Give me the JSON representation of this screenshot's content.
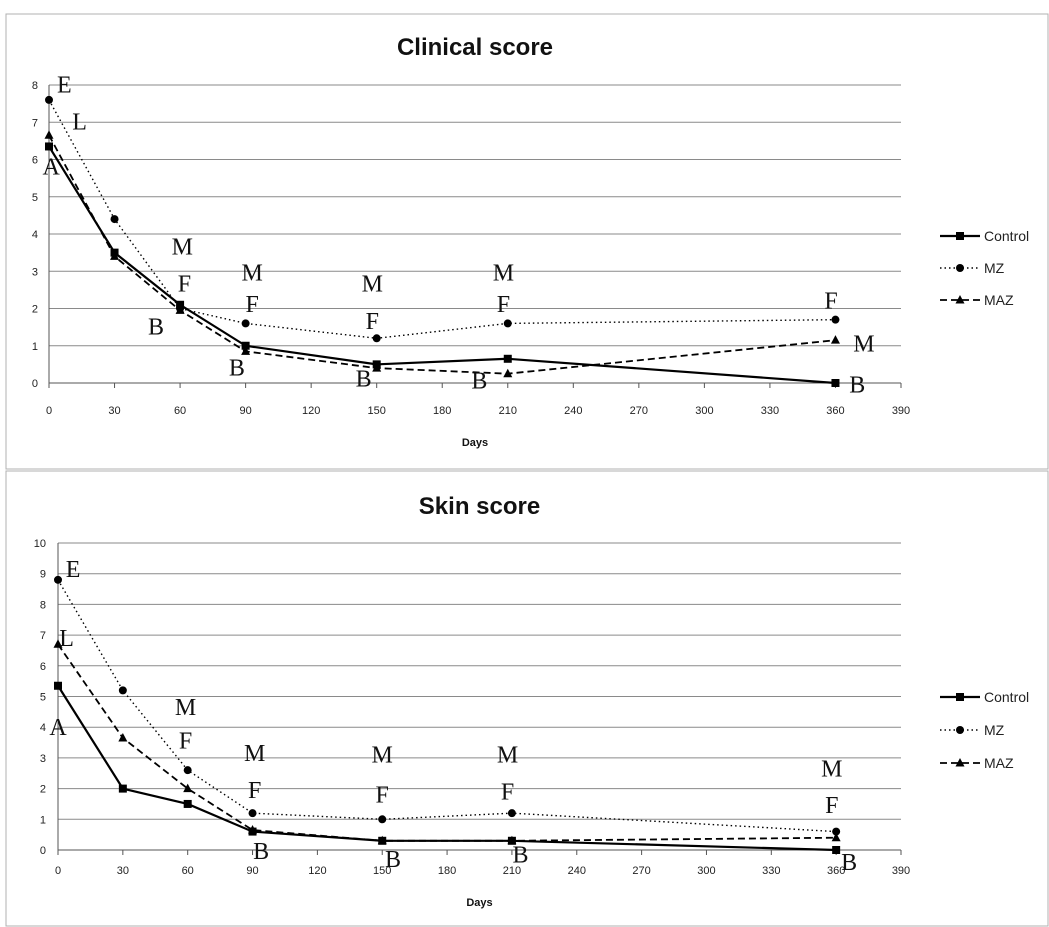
{
  "chart_data": [
    {
      "type": "line",
      "title": "Clinical score",
      "xlabel": "Days",
      "ylabel": "",
      "xlim": [
        0,
        390
      ],
      "ylim": [
        0,
        8
      ],
      "x_ticks": [
        0,
        30,
        60,
        90,
        120,
        150,
        180,
        210,
        240,
        270,
        300,
        330,
        360,
        390
      ],
      "y_ticks": [
        0,
        1,
        2,
        3,
        4,
        5,
        6,
        7,
        8
      ],
      "grid": "horizontal",
      "legend": "right",
      "series": [
        {
          "name": "Control",
          "style": "solid",
          "marker": "square",
          "x": [
            0,
            30,
            60,
            90,
            150,
            210,
            360
          ],
          "y": [
            6.35,
            3.5,
            2.1,
            1.0,
            0.5,
            0.65,
            0.0
          ]
        },
        {
          "name": "MZ",
          "style": "dotted",
          "marker": "circle",
          "x": [
            0,
            30,
            60,
            90,
            150,
            210,
            360
          ],
          "y": [
            7.6,
            4.4,
            2.0,
            1.6,
            1.2,
            1.6,
            1.7
          ]
        },
        {
          "name": "MAZ",
          "style": "dashed",
          "marker": "triangle",
          "x": [
            0,
            30,
            60,
            90,
            150,
            210,
            360
          ],
          "y": [
            6.65,
            3.4,
            1.95,
            0.85,
            0.4,
            0.25,
            1.15
          ]
        }
      ],
      "annotations": [
        {
          "text": "E",
          "x": 7,
          "y": 7.8
        },
        {
          "text": "L",
          "x": 14,
          "y": 6.8
        },
        {
          "text": "A",
          "x": 1,
          "y": 5.6
        },
        {
          "text": "M",
          "x": 61,
          "y": 3.45
        },
        {
          "text": "F",
          "x": 62,
          "y": 2.45
        },
        {
          "text": "B",
          "x": 49,
          "y": 1.3
        },
        {
          "text": "M",
          "x": 93,
          "y": 2.75
        },
        {
          "text": "F",
          "x": 93,
          "y": 1.9
        },
        {
          "text": "B",
          "x": 86,
          "y": 0.2
        },
        {
          "text": "M",
          "x": 148,
          "y": 2.45
        },
        {
          "text": "F",
          "x": 148,
          "y": 1.45
        },
        {
          "text": "B",
          "x": 144,
          "y": -0.1
        },
        {
          "text": "M",
          "x": 208,
          "y": 2.75
        },
        {
          "text": "F",
          "x": 208,
          "y": 1.9
        },
        {
          "text": "B",
          "x": 197,
          "y": -0.15
        },
        {
          "text": "F",
          "x": 358,
          "y": 2.0
        },
        {
          "text": "M",
          "x": 373,
          "y": 0.85
        },
        {
          "text": "B",
          "x": 370,
          "y": -0.25
        }
      ]
    },
    {
      "type": "line",
      "title": "Skin score",
      "xlabel": "Days",
      "ylabel": "",
      "xlim": [
        0,
        390
      ],
      "ylim": [
        0,
        10
      ],
      "x_ticks": [
        0,
        30,
        60,
        90,
        120,
        150,
        180,
        210,
        240,
        270,
        300,
        330,
        360,
        390
      ],
      "y_ticks": [
        0,
        1,
        2,
        3,
        4,
        5,
        6,
        7,
        8,
        9,
        10
      ],
      "grid": "horizontal",
      "legend": "right",
      "series": [
        {
          "name": "Control",
          "style": "solid",
          "marker": "square",
          "x": [
            0,
            30,
            60,
            90,
            150,
            210,
            360
          ],
          "y": [
            5.35,
            2.0,
            1.5,
            0.6,
            0.3,
            0.3,
            0.0
          ]
        },
        {
          "name": "MZ",
          "style": "dotted",
          "marker": "circle",
          "x": [
            0,
            30,
            60,
            90,
            150,
            210,
            360
          ],
          "y": [
            8.8,
            5.2,
            2.6,
            1.2,
            1.0,
            1.2,
            0.6
          ]
        },
        {
          "name": "MAZ",
          "style": "dashed",
          "marker": "triangle",
          "x": [
            0,
            30,
            60,
            90,
            150,
            210,
            360
          ],
          "y": [
            6.7,
            3.65,
            2.0,
            0.65,
            0.3,
            0.3,
            0.4
          ]
        }
      ],
      "annotations": [
        {
          "text": "E",
          "x": 7,
          "y": 8.9
        },
        {
          "text": "L",
          "x": 4,
          "y": 6.65
        },
        {
          "text": "A",
          "x": 0,
          "y": 3.75
        },
        {
          "text": "M",
          "x": 59,
          "y": 4.4
        },
        {
          "text": "F",
          "x": 59,
          "y": 3.3
        },
        {
          "text": "M",
          "x": 91,
          "y": 2.9
        },
        {
          "text": "F",
          "x": 91,
          "y": 1.7
        },
        {
          "text": "B",
          "x": 94,
          "y": -0.3
        },
        {
          "text": "M",
          "x": 150,
          "y": 2.85
        },
        {
          "text": "F",
          "x": 150,
          "y": 1.55
        },
        {
          "text": "B",
          "x": 155,
          "y": -0.55
        },
        {
          "text": "M",
          "x": 208,
          "y": 2.85
        },
        {
          "text": "F",
          "x": 208,
          "y": 1.65
        },
        {
          "text": "B",
          "x": 214,
          "y": -0.4
        },
        {
          "text": "M",
          "x": 358,
          "y": 2.4
        },
        {
          "text": "F",
          "x": 358,
          "y": 1.2
        },
        {
          "text": "B",
          "x": 366,
          "y": -0.65
        }
      ]
    }
  ]
}
